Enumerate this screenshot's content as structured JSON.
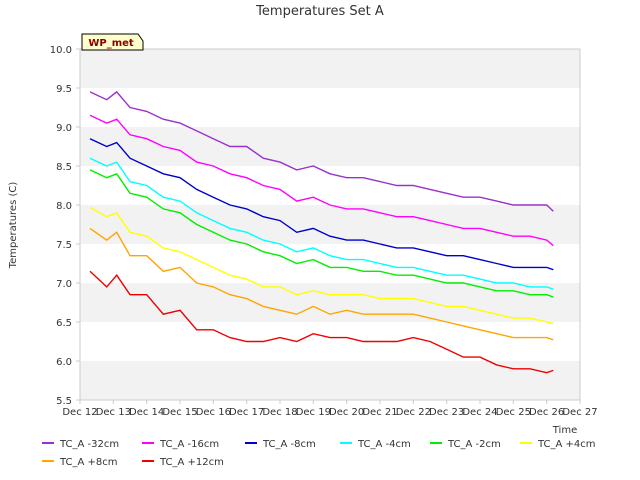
{
  "chart_data": {
    "type": "line",
    "title": "Temperatures Set A",
    "xlabel": "Time",
    "ylabel": "Temperatures (C)",
    "badge": "WP_met",
    "ylim": [
      5.5,
      10.0
    ],
    "yticks": [
      "5.5",
      "6.0",
      "6.5",
      "7.0",
      "7.5",
      "8.0",
      "8.5",
      "9.0",
      "9.5",
      "10.0"
    ],
    "xlim": [
      "Dec 12",
      "Dec 27"
    ],
    "xticks": [
      "Dec 12",
      "Dec 13",
      "Dec 14",
      "Dec 15",
      "Dec 16",
      "Dec 17",
      "Dec 18",
      "Dec 19",
      "Dec 20",
      "Dec 21",
      "Dec 22",
      "Dec 23",
      "Dec 24",
      "Dec 25",
      "Dec 26",
      "Dec 27"
    ],
    "grid": "horizontal bands",
    "legend_position": "bottom",
    "x": [
      12.3,
      12.8,
      13.1,
      13.5,
      14.0,
      14.5,
      15.0,
      15.5,
      16.0,
      16.5,
      17.0,
      17.5,
      18.0,
      18.5,
      19.0,
      19.5,
      20.0,
      20.5,
      21.0,
      21.5,
      22.0,
      22.5,
      23.0,
      23.5,
      24.0,
      24.5,
      25.0,
      25.5,
      26.0,
      26.2
    ],
    "series": [
      {
        "name": "TC_A -32cm",
        "color": "#9932cc",
        "values": [
          9.45,
          9.35,
          9.45,
          9.25,
          9.2,
          9.1,
          9.05,
          8.95,
          8.85,
          8.75,
          8.75,
          8.6,
          8.55,
          8.45,
          8.5,
          8.4,
          8.35,
          8.35,
          8.3,
          8.25,
          8.25,
          8.2,
          8.15,
          8.1,
          8.1,
          8.05,
          8.0,
          8.0,
          8.0,
          7.92
        ]
      },
      {
        "name": "TC_A -16cm",
        "color": "#ff00ff",
        "values": [
          9.15,
          9.05,
          9.1,
          8.9,
          8.85,
          8.75,
          8.7,
          8.55,
          8.5,
          8.4,
          8.35,
          8.25,
          8.2,
          8.05,
          8.1,
          8.0,
          7.95,
          7.95,
          7.9,
          7.85,
          7.85,
          7.8,
          7.75,
          7.7,
          7.7,
          7.65,
          7.6,
          7.6,
          7.55,
          7.48
        ]
      },
      {
        "name": "TC_A -8cm",
        "color": "#0000cd",
        "values": [
          8.85,
          8.75,
          8.8,
          8.6,
          8.5,
          8.4,
          8.35,
          8.2,
          8.1,
          8.0,
          7.95,
          7.85,
          7.8,
          7.65,
          7.7,
          7.6,
          7.55,
          7.55,
          7.5,
          7.45,
          7.45,
          7.4,
          7.35,
          7.35,
          7.3,
          7.25,
          7.2,
          7.2,
          7.2,
          7.17
        ]
      },
      {
        "name": "TC_A -4cm",
        "color": "#00ffff",
        "values": [
          8.6,
          8.5,
          8.55,
          8.3,
          8.25,
          8.1,
          8.05,
          7.9,
          7.8,
          7.7,
          7.65,
          7.55,
          7.5,
          7.4,
          7.45,
          7.35,
          7.3,
          7.3,
          7.25,
          7.2,
          7.2,
          7.15,
          7.1,
          7.1,
          7.05,
          7.0,
          7.0,
          6.95,
          6.95,
          6.92
        ]
      },
      {
        "name": "TC_A -2cm",
        "color": "#00ee00",
        "values": [
          8.45,
          8.35,
          8.4,
          8.15,
          8.1,
          7.95,
          7.9,
          7.75,
          7.65,
          7.55,
          7.5,
          7.4,
          7.35,
          7.25,
          7.3,
          7.2,
          7.2,
          7.15,
          7.15,
          7.1,
          7.1,
          7.05,
          7.0,
          7.0,
          6.95,
          6.9,
          6.9,
          6.85,
          6.85,
          6.82
        ]
      },
      {
        "name": "TC_A +4cm",
        "color": "#ffff00",
        "values": [
          7.97,
          7.85,
          7.9,
          7.65,
          7.6,
          7.45,
          7.4,
          7.3,
          7.2,
          7.1,
          7.05,
          6.95,
          6.95,
          6.85,
          6.9,
          6.85,
          6.85,
          6.85,
          6.8,
          6.8,
          6.8,
          6.75,
          6.7,
          6.7,
          6.65,
          6.6,
          6.55,
          6.55,
          6.5,
          6.48
        ]
      },
      {
        "name": "TC_A +8cm",
        "color": "#ffa500",
        "values": [
          7.7,
          7.55,
          7.65,
          7.35,
          7.35,
          7.15,
          7.2,
          7.0,
          6.95,
          6.85,
          6.8,
          6.7,
          6.65,
          6.6,
          6.7,
          6.6,
          6.65,
          6.6,
          6.6,
          6.6,
          6.6,
          6.55,
          6.5,
          6.45,
          6.4,
          6.35,
          6.3,
          6.3,
          6.3,
          6.27
        ]
      },
      {
        "name": "TC_A +12cm",
        "color": "#ee0000",
        "values": [
          7.15,
          6.95,
          7.1,
          6.85,
          6.85,
          6.6,
          6.65,
          6.4,
          6.4,
          6.3,
          6.25,
          6.25,
          6.3,
          6.25,
          6.35,
          6.3,
          6.3,
          6.25,
          6.25,
          6.25,
          6.3,
          6.25,
          6.15,
          6.05,
          6.05,
          5.95,
          5.9,
          5.9,
          5.85,
          5.88
        ]
      }
    ]
  }
}
